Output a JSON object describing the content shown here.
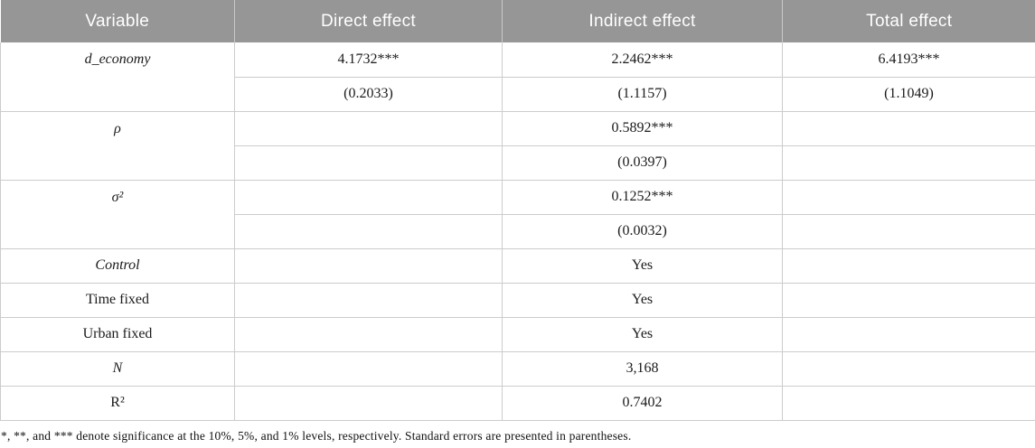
{
  "colors": {
    "header_bg": "#969696",
    "header_text": "#ffffff",
    "grid_border": "#cccccc"
  },
  "header": {
    "variable": "Variable",
    "direct": "Direct effect",
    "indirect": "Indirect effect",
    "total": "Total effect"
  },
  "rows": {
    "d_economy": {
      "label": "d_economy",
      "coef": {
        "direct": "4.1732***",
        "indirect": "2.2462***",
        "total": "6.4193***"
      },
      "se": {
        "direct": "(0.2033)",
        "indirect": "(1.1157)",
        "total": "(1.1049)"
      }
    },
    "rho": {
      "label": "ρ",
      "coef": {
        "direct": "",
        "indirect": "0.5892***",
        "total": ""
      },
      "se": {
        "direct": "",
        "indirect": "(0.0397)",
        "total": ""
      }
    },
    "sigma2": {
      "label": "σ²",
      "coef": {
        "direct": "",
        "indirect": "0.1252***",
        "total": ""
      },
      "se": {
        "direct": "",
        "indirect": "(0.0032)",
        "total": ""
      }
    },
    "control": {
      "label": "Control",
      "direct": "",
      "indirect": "Yes",
      "total": ""
    },
    "time_fixed": {
      "label": "Time fixed",
      "direct": "",
      "indirect": "Yes",
      "total": ""
    },
    "urban_fixed": {
      "label": "Urban fixed",
      "direct": "",
      "indirect": "Yes",
      "total": ""
    },
    "n": {
      "label": "N",
      "direct": "",
      "indirect": "3,168",
      "total": ""
    },
    "r2": {
      "label": "R²",
      "direct": "",
      "indirect": "0.7402",
      "total": ""
    }
  },
  "footnote": "*, **, and *** denote significance at the 10%, 5%, and 1% levels, respectively. Standard errors are presented in parentheses."
}
